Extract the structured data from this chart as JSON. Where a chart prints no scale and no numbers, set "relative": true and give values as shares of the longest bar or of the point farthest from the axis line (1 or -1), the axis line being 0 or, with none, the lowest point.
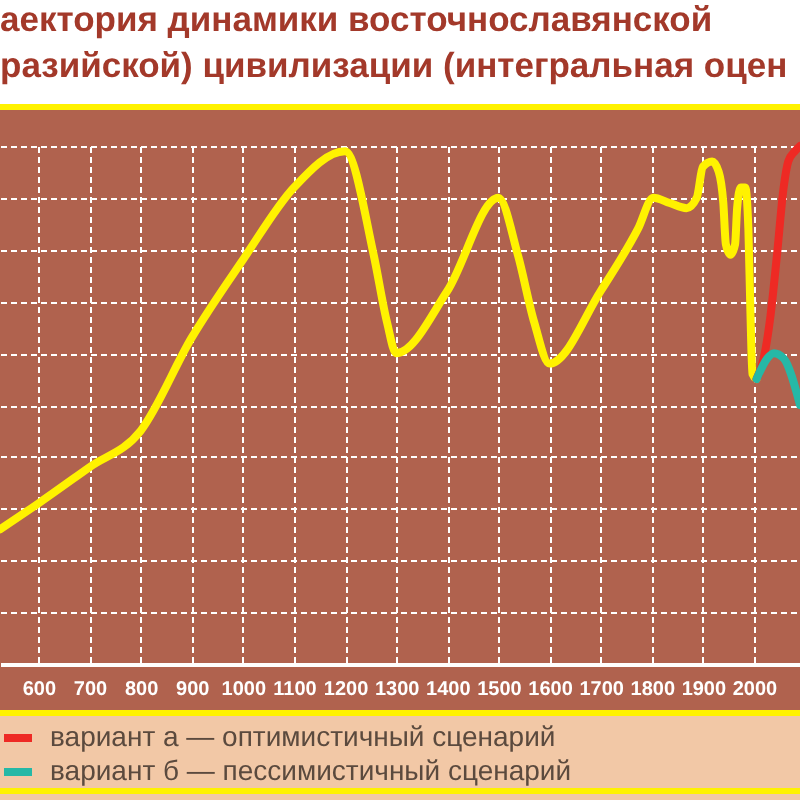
{
  "chart_data": {
    "type": "line",
    "title": "аектория динамики восточнославянской\nразийской) цивилизации (интегральная оцен",
    "relative": true,
    "xlim": [
      525,
      2090
    ],
    "xticks": [
      600,
      700,
      800,
      900,
      1000,
      1100,
      1200,
      1300,
      1400,
      1500,
      1600,
      1700,
      1800,
      1900,
      2000
    ],
    "grid": true,
    "legend": "bottom left",
    "series": [
      {
        "color": "#fff200",
        "x": [
          525,
          600,
          700,
          800,
          900,
          1000,
          1100,
          1200,
          1256,
          1282,
          1300,
          1400,
          1500,
          1538,
          1570,
          1600,
          1700,
          1773,
          1803,
          1835,
          1868,
          1888,
          1900,
          1918,
          1931,
          1940,
          1945,
          1954,
          1963,
          1967,
          1974,
          1983,
          1989,
          1993,
          1997,
          2005
        ],
        "values": [
          0.26,
          0.31,
          0.38,
          0.45,
          0.63,
          0.78,
          0.92,
          0.99,
          0.79,
          0.66,
          0.6,
          0.72,
          0.9,
          0.79,
          0.66,
          0.58,
          0.72,
          0.84,
          0.9,
          0.89,
          0.88,
          0.9,
          0.96,
          0.97,
          0.95,
          0.89,
          0.81,
          0.79,
          0.81,
          0.88,
          0.92,
          0.92,
          0.84,
          0.68,
          0.56,
          0.55
        ]
      },
      {
        "name": "вариант а — оптимистичный сценарий",
        "color": "#ee2a24",
        "x": [
          2005,
          2019,
          2032,
          2045,
          2058,
          2067,
          2080,
          2090
        ],
        "values": [
          0.55,
          0.59,
          0.67,
          0.79,
          0.92,
          0.97,
          0.99,
          1
        ]
      },
      {
        "name": "вариант б — пессимистичный сценарий",
        "color": "#26b8a6",
        "x": [
          2005,
          2026,
          2039,
          2058,
          2090
        ],
        "values": [
          0.55,
          0.59,
          0.6,
          0.59,
          0.5
        ]
      }
    ]
  }
}
